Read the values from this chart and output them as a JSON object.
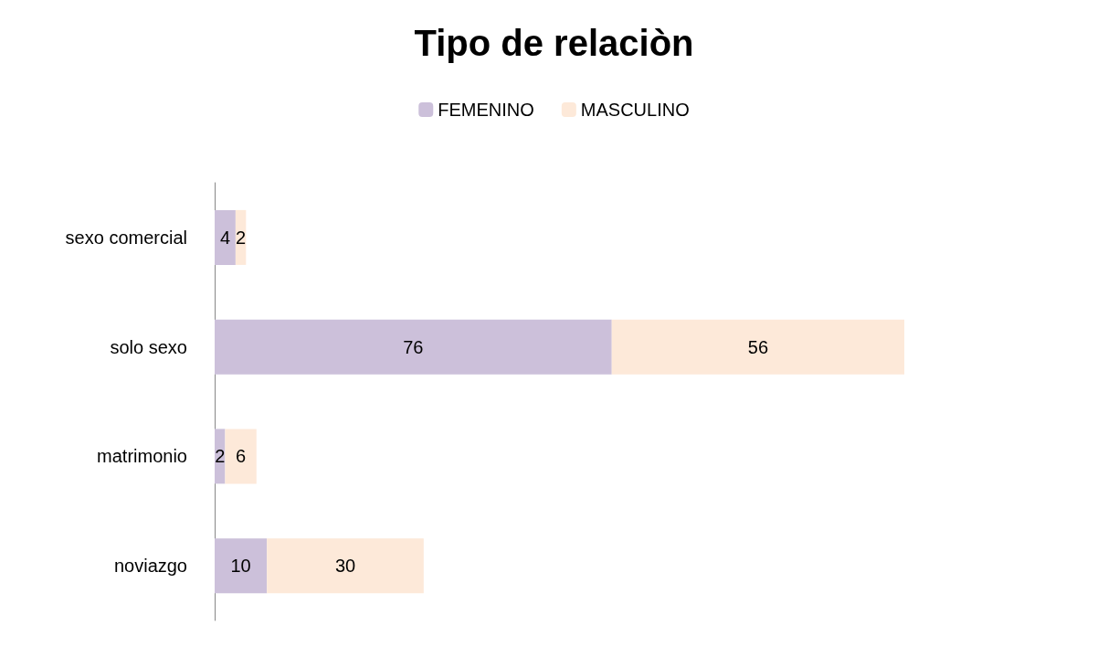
{
  "chart_data": {
    "type": "bar",
    "title": "Tipo de relaciòn",
    "orientation": "horizontal",
    "stacked": true,
    "categories": [
      "sexo comercial",
      "solo sexo",
      "matrimonio",
      "noviazgo"
    ],
    "series": [
      {
        "name": "FEMENINO",
        "color": "#ccc0da",
        "values": [
          4,
          76,
          2,
          10
        ]
      },
      {
        "name": "MASCULINO",
        "color": "#fde9d9",
        "values": [
          2,
          56,
          6,
          30
        ]
      }
    ],
    "data_labels": true,
    "legend": "top",
    "tick_labels": "y"
  }
}
